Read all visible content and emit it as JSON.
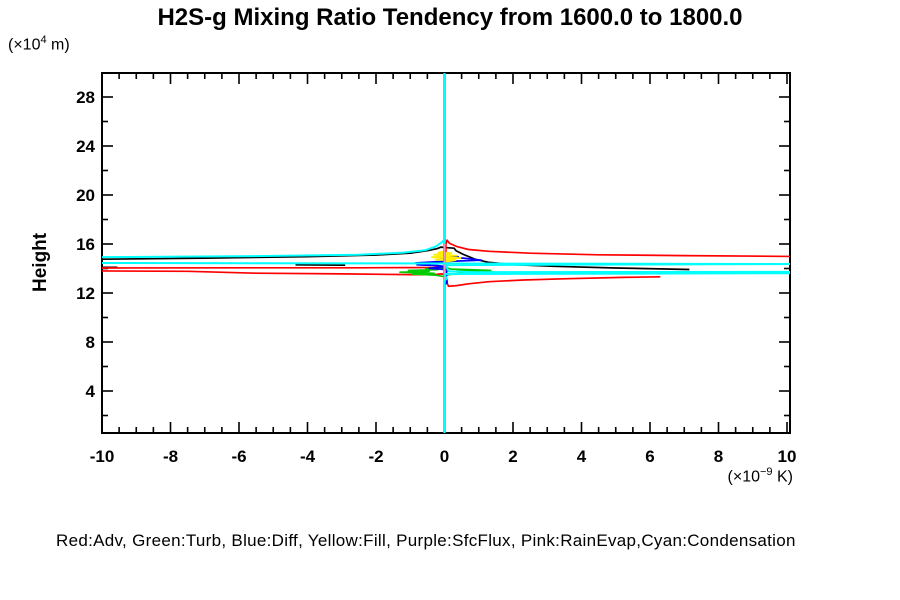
{
  "title": "H2S-g Mixing Ratio Tendency from 1600.0 to 1800.0",
  "y_axis_label": "Height",
  "y_axis_unit": {
    "prefix": "(×10",
    "sup": "4",
    "suffix": " m)"
  },
  "x_axis_unit": {
    "prefix": "(×10",
    "sup": "−9",
    "suffix": " K)"
  },
  "legend_text": "Red:Adv, Green:Turb, Blue:Diff, Yellow:Fill, Purple:SfcFlux, Pink:RainEvap,Cyan:Condensation",
  "legend_entries": [
    {
      "color_name": "Red",
      "hex": "#ff0000",
      "label": "Adv"
    },
    {
      "color_name": "Green",
      "hex": "#00cc00",
      "label": "Turb"
    },
    {
      "color_name": "Blue",
      "hex": "#0000ff",
      "label": "Diff"
    },
    {
      "color_name": "Yellow",
      "hex": "#ffee00",
      "label": "Fill"
    },
    {
      "color_name": "Purple",
      "hex": "#9955bb",
      "label": "SfcFlux"
    },
    {
      "color_name": "Pink",
      "hex": "#ee99bb",
      "label": "RainEvap"
    },
    {
      "color_name": "Cyan",
      "hex": "#00ffff",
      "label": "Condensation"
    }
  ],
  "chart_data": {
    "type": "line",
    "title": "H2S-g Mixing Ratio Tendency from 1600.0 to 1800.0",
    "xlabel": "(×10−9 K)",
    "ylabel": "Height (×10⁴ m)",
    "xlim": [
      -10,
      10.1
    ],
    "ylim": [
      0.55,
      29.96
    ],
    "grid": false,
    "x_major_ticks": [
      -10,
      -8,
      -6,
      -4,
      -2,
      0,
      2,
      4,
      6,
      8,
      10
    ],
    "x_tick_labels": [
      "-10",
      "-8",
      "-6",
      "-4",
      "-2",
      "0",
      "2",
      "4",
      "6",
      "8",
      "10"
    ],
    "x_minor_step": 0.5,
    "y_major_ticks": [
      4,
      8,
      12,
      16,
      20,
      24,
      28
    ],
    "y_tick_labels": [
      "4",
      "8",
      "12",
      "16",
      "20",
      "24",
      "28"
    ],
    "y_minor_step": 2,
    "series": [
      {
        "name": "black-unlabeled",
        "color": "#000000",
        "width": 1.7,
        "points": [
          [
            -10.3,
            14.75
          ],
          [
            -7,
            14.85
          ],
          [
            -4,
            14.97
          ],
          [
            -2,
            15.1
          ],
          [
            -1,
            15.25
          ],
          [
            -0.5,
            15.45
          ],
          [
            -0.22,
            15.62
          ],
          [
            -0.1,
            15.75
          ],
          [
            0.08,
            15.7
          ],
          [
            0.28,
            15.66
          ],
          [
            0.34,
            15.45
          ],
          [
            0.55,
            15.15
          ],
          [
            0.9,
            14.75
          ],
          [
            1.3,
            14.5
          ],
          [
            2,
            14.32
          ],
          [
            3.2,
            14.18
          ],
          [
            5,
            14.04
          ],
          [
            7.15,
            13.92
          ]
        ]
      },
      {
        "name": "black-dash-mid",
        "color": "#000000",
        "width": 1.7,
        "points": [
          [
            -4.35,
            14.3
          ],
          [
            -2.9,
            14.27
          ]
        ]
      },
      {
        "name": "black-dash-left",
        "color": "#000000",
        "width": 1.7,
        "points": [
          [
            -10.3,
            14.1
          ],
          [
            -9.55,
            14.09
          ]
        ]
      },
      {
        "name": "Adv-upper",
        "color": "#ff0000",
        "width": 1.7,
        "points": [
          [
            10.4,
            14.98
          ],
          [
            7,
            15.05
          ],
          [
            4.5,
            15.12
          ],
          [
            2.5,
            15.25
          ],
          [
            1.3,
            15.4
          ],
          [
            0.7,
            15.55
          ],
          [
            0.35,
            15.8
          ],
          [
            0.15,
            16.05
          ],
          [
            0.07,
            16.32
          ],
          [
            0.04,
            16.0
          ],
          [
            0.04,
            14.6
          ],
          [
            0.04,
            14.15
          ],
          [
            -0.3,
            14.08
          ],
          [
            -2.5,
            14.06
          ],
          [
            -6,
            14.06
          ],
          [
            -10.4,
            14.04
          ]
        ]
      },
      {
        "name": "Adv-lower",
        "color": "#ff0000",
        "width": 1.7,
        "points": [
          [
            -10.4,
            13.8
          ],
          [
            -7.5,
            13.77
          ],
          [
            -5.5,
            13.62
          ],
          [
            -3,
            13.56
          ],
          [
            -1,
            13.5
          ],
          [
            -0.3,
            13.5
          ],
          [
            -0.1,
            13.56
          ],
          [
            0.05,
            13.5
          ],
          [
            0.05,
            12.95
          ],
          [
            0.12,
            12.55
          ],
          [
            0.35,
            12.6
          ],
          [
            0.7,
            12.75
          ],
          [
            1.3,
            12.92
          ],
          [
            2.3,
            13.06
          ],
          [
            3.6,
            13.17
          ],
          [
            5.2,
            13.27
          ],
          [
            6.3,
            13.32
          ]
        ]
      },
      {
        "name": "Turb",
        "color": "#00cc00",
        "width": 1.7,
        "points": [
          [
            0.02,
            13.32
          ],
          [
            -0.25,
            13.45
          ],
          [
            -0.95,
            13.55
          ],
          [
            -0.3,
            13.6
          ],
          [
            -1.3,
            13.7
          ],
          [
            -0.45,
            13.77
          ],
          [
            -1.05,
            13.84
          ],
          [
            -0.2,
            13.9
          ],
          [
            -0.55,
            13.98
          ],
          [
            0.08,
            14.05
          ],
          [
            0.18,
            13.95
          ],
          [
            0.75,
            13.9
          ],
          [
            1.35,
            13.84
          ],
          [
            0.35,
            13.78
          ],
          [
            1.15,
            13.72
          ],
          [
            2.0,
            13.67
          ],
          [
            0.45,
            13.6
          ],
          [
            0.12,
            13.5
          ],
          [
            0.02,
            13.4
          ]
        ]
      },
      {
        "name": "Diff",
        "color": "#0000ff",
        "width": 1.7,
        "points": [
          [
            0.02,
            15.2
          ],
          [
            0.12,
            15.0
          ],
          [
            0.4,
            14.95
          ],
          [
            -0.12,
            14.9
          ],
          [
            0.55,
            14.85
          ],
          [
            1.08,
            14.68
          ],
          [
            0.3,
            14.6
          ],
          [
            -0.3,
            14.55
          ],
          [
            -0.85,
            14.45
          ],
          [
            -0.4,
            14.38
          ],
          [
            -0.8,
            14.3
          ],
          [
            -0.2,
            14.24
          ],
          [
            0.06,
            14.15
          ],
          [
            -0.45,
            14.02
          ],
          [
            0.07,
            13.9
          ],
          [
            0.05,
            13.4
          ],
          [
            0.08,
            12.88
          ],
          [
            0.02,
            12.7
          ]
        ]
      },
      {
        "name": "Fill",
        "color": "#ffee00",
        "width": 1.8,
        "points": [
          [
            0.0,
            15.42
          ],
          [
            -0.18,
            15.3
          ],
          [
            0.2,
            15.25
          ],
          [
            -0.3,
            15.12
          ],
          [
            0.37,
            15.05
          ],
          [
            -0.37,
            14.92
          ],
          [
            0.47,
            14.86
          ],
          [
            -0.27,
            14.73
          ],
          [
            0.32,
            14.68
          ],
          [
            0.02,
            14.56
          ]
        ]
      },
      {
        "name": "SfcFlux",
        "color": "#9955bb",
        "width": 2.6,
        "points": [
          [
            0,
            0.45
          ],
          [
            0,
            29.95
          ]
        ]
      },
      {
        "name": "RainEvap",
        "color": "#ee99bb",
        "width": 1.7,
        "points": [
          [
            0,
            0.45
          ],
          [
            0,
            29.95
          ]
        ]
      },
      {
        "name": "Condensation",
        "color": "#00ffff",
        "width": 2.0,
        "points": [
          [
            0,
            0.4
          ],
          [
            0,
            13.0
          ],
          [
            0.07,
            13.2
          ],
          [
            0.02,
            13.38
          ],
          [
            0.02,
            13.55
          ],
          [
            10.4,
            13.62
          ],
          [
            10.4,
            13.73
          ],
          [
            0.9,
            13.7
          ],
          [
            0.12,
            13.76
          ],
          [
            0.07,
            14.05
          ],
          [
            0.05,
            14.28
          ],
          [
            10.4,
            14.37
          ],
          [
            -10.4,
            14.45
          ],
          [
            -10.4,
            14.92
          ],
          [
            -6,
            15.0
          ],
          [
            -2.5,
            15.12
          ],
          [
            -1.2,
            15.3
          ],
          [
            -0.55,
            15.5
          ],
          [
            -0.25,
            15.8
          ],
          [
            -0.08,
            16.15
          ],
          [
            -0.03,
            16.28
          ],
          [
            0,
            16.1
          ],
          [
            0,
            29.96
          ]
        ]
      }
    ]
  }
}
